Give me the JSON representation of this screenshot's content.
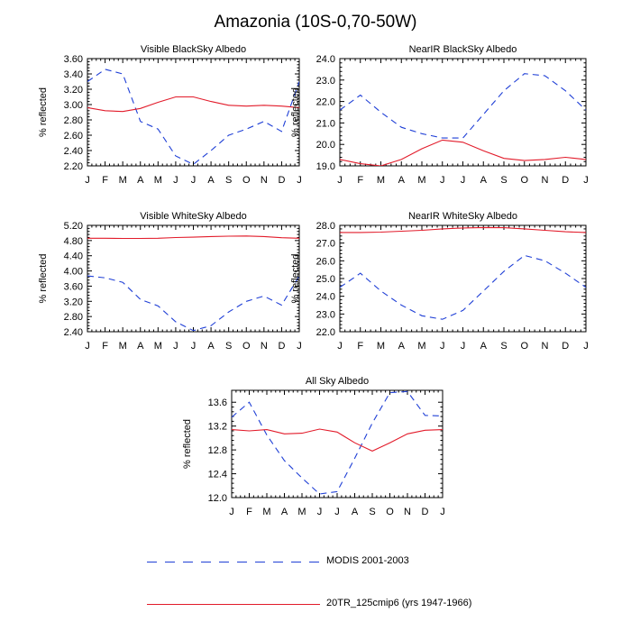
{
  "title": "Amazonia (10S-0,70-50W)",
  "colors": {
    "modis": "#1f3fd6",
    "model": "#e21b2a",
    "axis": "#000000"
  },
  "legend": [
    {
      "key": "modis",
      "label": "MODIS 2001-2003",
      "style": "dashed"
    },
    {
      "key": "model",
      "label": "20TR_125cmip6 (yrs 1947-1966)",
      "style": "solid"
    }
  ],
  "chart_data": [
    {
      "type": "line",
      "title": "Visible BlackSky Albedo",
      "ylabel": "% reflected",
      "categories": [
        "J",
        "F",
        "M",
        "A",
        "M",
        "J",
        "J",
        "A",
        "S",
        "O",
        "N",
        "D",
        "J"
      ],
      "ylim": [
        2.2,
        3.6
      ],
      "yticks": [
        2.2,
        2.4,
        2.6,
        2.8,
        3.0,
        3.2,
        3.4,
        3.6
      ],
      "ytick_labels": [
        "2.20",
        "2.40",
        "2.60",
        "2.80",
        "3.00",
        "3.20",
        "3.40",
        "3.60"
      ],
      "series": [
        {
          "name": "MODIS 2001-2003",
          "key": "modis",
          "values": [
            3.3,
            3.46,
            3.4,
            2.78,
            2.68,
            2.33,
            2.22,
            2.4,
            2.6,
            2.68,
            2.78,
            2.65,
            3.3
          ]
        },
        {
          "name": "20TR_125cmip6 (yrs 1947-1966)",
          "key": "model",
          "values": [
            2.96,
            2.92,
            2.91,
            2.95,
            3.03,
            3.1,
            3.1,
            3.04,
            2.99,
            2.98,
            2.99,
            2.98,
            2.96
          ]
        }
      ]
    },
    {
      "type": "line",
      "title": "NearIR BlackSky Albedo",
      "ylabel": "% reflected",
      "categories": [
        "J",
        "F",
        "M",
        "A",
        "M",
        "J",
        "J",
        "A",
        "S",
        "O",
        "N",
        "D",
        "J"
      ],
      "ylim": [
        19.0,
        24.0
      ],
      "yticks": [
        19.0,
        20.0,
        21.0,
        22.0,
        23.0,
        24.0
      ],
      "ytick_labels": [
        "19.0",
        "20.0",
        "21.0",
        "22.0",
        "23.0",
        "24.0"
      ],
      "series": [
        {
          "name": "MODIS 2001-2003",
          "key": "modis",
          "values": [
            21.6,
            22.3,
            21.5,
            20.8,
            20.5,
            20.3,
            20.3,
            21.4,
            22.5,
            23.3,
            23.2,
            22.5,
            21.6
          ]
        },
        {
          "name": "20TR_125cmip6 (yrs 1947-1966)",
          "key": "model",
          "values": [
            19.3,
            19.1,
            19.0,
            19.3,
            19.8,
            20.2,
            20.1,
            19.7,
            19.35,
            19.25,
            19.3,
            19.4,
            19.3
          ]
        }
      ]
    },
    {
      "type": "line",
      "title": "Visible WhiteSky Albedo",
      "ylabel": "% reflected",
      "categories": [
        "J",
        "F",
        "M",
        "A",
        "M",
        "J",
        "J",
        "A",
        "S",
        "O",
        "N",
        "D",
        "J"
      ],
      "ylim": [
        2.4,
        5.2
      ],
      "yticks": [
        2.4,
        2.8,
        3.2,
        3.6,
        4.0,
        4.4,
        4.8,
        5.2
      ],
      "ytick_labels": [
        "2.40",
        "2.80",
        "3.20",
        "3.60",
        "4.00",
        "4.40",
        "4.80",
        "5.20"
      ],
      "series": [
        {
          "name": "MODIS 2001-2003",
          "key": "modis",
          "values": [
            3.87,
            3.82,
            3.7,
            3.25,
            3.08,
            2.66,
            2.43,
            2.56,
            2.92,
            3.2,
            3.34,
            3.1,
            3.87
          ]
        },
        {
          "name": "20TR_125cmip6 (yrs 1947-1966)",
          "key": "model",
          "values": [
            4.86,
            4.86,
            4.855,
            4.855,
            4.86,
            4.88,
            4.89,
            4.905,
            4.915,
            4.92,
            4.905,
            4.875,
            4.86
          ]
        }
      ]
    },
    {
      "type": "line",
      "title": "NearIR WhiteSky Albedo",
      "ylabel": "% reflected",
      "categories": [
        "J",
        "F",
        "M",
        "A",
        "M",
        "J",
        "J",
        "A",
        "S",
        "O",
        "N",
        "D",
        "J"
      ],
      "ylim": [
        22.0,
        28.0
      ],
      "yticks": [
        22.0,
        23.0,
        24.0,
        25.0,
        26.0,
        27.0,
        28.0
      ],
      "ytick_labels": [
        "22.0",
        "23.0",
        "24.0",
        "25.0",
        "26.0",
        "27.0",
        "28.0"
      ],
      "series": [
        {
          "name": "MODIS 2001-2003",
          "key": "modis",
          "values": [
            24.5,
            25.3,
            24.3,
            23.5,
            22.9,
            22.7,
            23.2,
            24.3,
            25.4,
            26.3,
            26.0,
            25.3,
            24.5
          ]
        },
        {
          "name": "20TR_125cmip6 (yrs 1947-1966)",
          "key": "model",
          "values": [
            27.6,
            27.6,
            27.62,
            27.67,
            27.72,
            27.8,
            27.85,
            27.88,
            27.87,
            27.8,
            27.72,
            27.64,
            27.6
          ]
        }
      ]
    },
    {
      "type": "line",
      "title": "All Sky Albedo",
      "ylabel": "% reflected",
      "categories": [
        "J",
        "F",
        "M",
        "A",
        "M",
        "J",
        "J",
        "A",
        "S",
        "O",
        "N",
        "D",
        "J"
      ],
      "ylim": [
        12.0,
        13.8
      ],
      "yticks": [
        12.0,
        12.4,
        12.8,
        13.2,
        13.6
      ],
      "ytick_labels": [
        "12.0",
        "12.4",
        "12.8",
        "13.2",
        "13.6"
      ],
      "series": [
        {
          "name": "MODIS 2001-2003",
          "key": "modis",
          "values": [
            13.35,
            13.6,
            13.05,
            12.62,
            12.33,
            12.06,
            12.1,
            12.66,
            13.25,
            13.76,
            13.78,
            13.38,
            13.37
          ]
        },
        {
          "name": "20TR_125cmip6 (yrs 1947-1966)",
          "key": "model",
          "values": [
            13.14,
            13.12,
            13.14,
            13.07,
            13.08,
            13.15,
            13.1,
            12.92,
            12.78,
            12.92,
            13.07,
            13.13,
            13.14
          ]
        }
      ]
    }
  ]
}
